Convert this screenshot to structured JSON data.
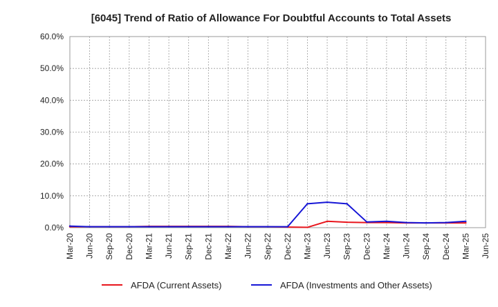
{
  "chart_data": {
    "type": "line",
    "title": "[6045]  Trend of Ratio of Allowance For Doubtful Accounts to Total Assets",
    "xlabel": "",
    "ylabel": "",
    "ylim": [
      0,
      60
    ],
    "y_ticks": [
      "0.0%",
      "10.0%",
      "20.0%",
      "30.0%",
      "40.0%",
      "50.0%",
      "60.0%"
    ],
    "y_tick_values": [
      0,
      10,
      20,
      30,
      40,
      50,
      60
    ],
    "categories": [
      "Mar-20",
      "Jun-20",
      "Sep-20",
      "Dec-20",
      "Mar-21",
      "Jun-21",
      "Sep-21",
      "Dec-21",
      "Mar-22",
      "Jun-22",
      "Sep-22",
      "Dec-22",
      "Mar-23",
      "Jun-23",
      "Sep-23",
      "Dec-23",
      "Mar-24",
      "Jun-24",
      "Sep-24",
      "Dec-24",
      "Mar-25",
      "Jun-25"
    ],
    "grid": true,
    "legend_position": "bottom",
    "series": [
      {
        "name": "AFDA (Current Assets)",
        "color": "#e8141b",
        "values": [
          0.3,
          0.3,
          0.3,
          0.3,
          0.4,
          0.4,
          0.4,
          0.4,
          0.4,
          0.3,
          0.3,
          0.2,
          0.1,
          2.0,
          1.7,
          1.6,
          1.6,
          1.5,
          1.5,
          1.5,
          1.5,
          null
        ]
      },
      {
        "name": "AFDA (Investments and Other Assets)",
        "color": "#1515d6",
        "values": [
          0.5,
          0.3,
          0.3,
          0.3,
          0.3,
          0.3,
          0.3,
          0.3,
          0.3,
          0.3,
          0.3,
          0.3,
          7.5,
          8.0,
          7.5,
          1.8,
          2.0,
          1.6,
          1.5,
          1.6,
          2.0,
          null
        ]
      }
    ]
  }
}
